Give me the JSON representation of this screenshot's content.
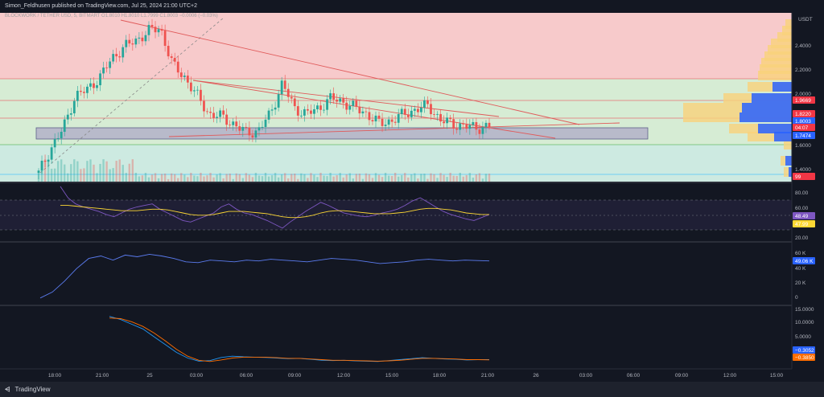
{
  "header": {
    "published": "Simon_Feldhusen published on TradingView.com, Jul 25, 2024 21:00 UTC+2",
    "symbol_line": "BLOCKWORK / TETHER USD, 5, BITMART  O1.8010  H1.8010  L1.7999  C1.8003  −0.0006 (−0.03%)"
  },
  "footer": {
    "brand": "TradingView",
    "brand_icon": "tradingview-logo-icon"
  },
  "colors": {
    "background": "#131722",
    "zone_red": "#f7cacb",
    "zone_green": "#d6ecd4",
    "zone_teal": "#cdeae1",
    "candle_up": "#26a69a",
    "candle_down": "#ef5350",
    "trendline": "#e05a5a",
    "support_box": "#b3b1c8",
    "rsi_line": "#7e57c2",
    "rsi_ma": "#fdd835",
    "obv_line": "#5b7cf0",
    "macd_line": "#2196f3",
    "signal_line": "#ff6d00"
  },
  "price_axis": {
    "currency": "USDT",
    "ticks": [
      "2.4000",
      "2.2000",
      "2.0000",
      "1.6000",
      "1.4000"
    ],
    "tags": [
      {
        "label": "1.9669",
        "color": "#f23645"
      },
      {
        "label": "1.8220",
        "color": "#f23645"
      },
      {
        "label": "1.8003",
        "color": "#2962ff"
      },
      {
        "label": "04:07",
        "color": "#f23645"
      },
      {
        "label": "1.7474",
        "color": "#2962ff"
      },
      {
        "label": "99",
        "color": "#f23645"
      }
    ]
  },
  "rsi_axis": {
    "ticks": [
      "80.00",
      "60.00",
      "40.00",
      "20.00"
    ],
    "tags": [
      {
        "label": "48.49",
        "color": "#7e57c2"
      },
      {
        "label": "47.99",
        "color": "#fdd835"
      }
    ]
  },
  "obv_axis": {
    "ticks": [
      "60 K",
      "40 K",
      "20 K",
      "0"
    ],
    "tags": [
      {
        "label": "49.06 K",
        "color": "#2962ff"
      }
    ]
  },
  "macd_axis": {
    "ticks": [
      "15.0000",
      "10.0000",
      "5.0000"
    ],
    "tags": [
      {
        "label": "−0.3052",
        "color": "#2962ff"
      },
      {
        "label": "−0.3850",
        "color": "#ff6d00"
      }
    ]
  },
  "time_axis": [
    "18:00",
    "21:00",
    "25",
    "03:00",
    "06:00",
    "09:00",
    "12:00",
    "15:00",
    "18:00",
    "21:00",
    "26",
    "03:00",
    "06:00",
    "09:00",
    "12:00",
    "15:00"
  ],
  "chart_data": [
    {
      "type": "candlestick",
      "title": "BLOCKWORK / TETHER USD, 5, BITMART",
      "ylim": [
        1.35,
        2.7
      ],
      "x": [
        "18:00",
        "18:30",
        "19:00",
        "19:30",
        "20:00",
        "20:30",
        "21:00",
        "21:30",
        "22:00",
        "22:30",
        "23:00",
        "23:30",
        "00:00",
        "00:30",
        "01:00",
        "01:30",
        "02:00",
        "02:30",
        "03:00",
        "03:30",
        "04:00",
        "05:00",
        "06:00",
        "07:00",
        "08:00",
        "09:00",
        "10:00",
        "11:00",
        "12:00",
        "13:00",
        "14:00",
        "15:00",
        "16:00",
        "17:00",
        "18:00",
        "19:00",
        "20:00",
        "21:00"
      ],
      "close": [
        1.42,
        1.62,
        1.78,
        2.05,
        2.1,
        2.2,
        2.35,
        2.45,
        2.5,
        2.58,
        2.6,
        2.3,
        2.2,
        2.05,
        1.9,
        1.88,
        1.82,
        1.75,
        1.76,
        1.9,
        2.15,
        1.95,
        1.9,
        1.95,
        2.03,
        2.0,
        1.95,
        1.9,
        1.82,
        1.85,
        1.9,
        1.94,
        1.97,
        1.85,
        1.82,
        1.8,
        1.79,
        1.8
      ],
      "volume_present": true,
      "levels": [
        {
          "name": "resistance",
          "value": 2.2
        },
        {
          "name": "mid",
          "value": 1.9669
        },
        {
          "name": "close",
          "value": 1.8003
        },
        {
          "name": "support",
          "value": 1.7474
        }
      ],
      "zones": [
        {
          "name": "red-zone",
          "from": 2.2,
          "to": 2.7
        },
        {
          "name": "green-zone",
          "from": 1.75,
          "to": 2.2
        },
        {
          "name": "teal-zone",
          "from": 1.36,
          "to": 1.6
        }
      ]
    },
    {
      "type": "line",
      "title": "RSI",
      "ylim": [
        15,
        85
      ],
      "series": [
        {
          "values": [
            85,
            70,
            62,
            58,
            55,
            52,
            48,
            45,
            50,
            55,
            58,
            60,
            62,
            55,
            50,
            45,
            40,
            38,
            42,
            46,
            50,
            58,
            62,
            55,
            50,
            48,
            44,
            40,
            35,
            30,
            38,
            45,
            52,
            58,
            64,
            60,
            55,
            50,
            48,
            46,
            45,
            47,
            50,
            52,
            55,
            60,
            66,
            70,
            64,
            58,
            52,
            48,
            45,
            42,
            40,
            44,
            48
          ]
        },
        {
          "values": [
            60,
            60,
            59,
            58,
            57,
            56,
            55,
            54,
            53,
            53,
            53,
            54,
            55,
            55,
            54,
            52,
            50,
            48,
            47,
            47,
            48,
            50,
            52,
            52,
            52,
            51,
            50,
            49,
            47,
            45,
            44,
            44,
            45,
            47,
            50,
            52,
            53,
            53,
            52,
            51,
            50,
            49,
            49,
            49,
            50,
            51,
            53,
            55,
            56,
            56,
            55,
            54,
            52,
            50,
            49,
            48,
            48
          ]
        }
      ]
    },
    {
      "type": "line",
      "title": "OBV",
      "ylim": [
        0,
        65000
      ],
      "series": [
        {
          "values": [
            5000,
            12000,
            25000,
            40000,
            52000,
            55000,
            50000,
            56000,
            54000,
            57000,
            55000,
            52000,
            48000,
            47000,
            50000,
            49000,
            48000,
            50000,
            49000,
            51000,
            50000,
            49000,
            48000,
            50000,
            52000,
            51000,
            50000,
            48000,
            46000,
            47000,
            48000,
            50000,
            51000,
            50000,
            49000,
            50000,
            49500,
            49060
          ]
        }
      ]
    },
    {
      "type": "line",
      "title": "MACD",
      "ylim": [
        -3,
        16
      ],
      "series": [
        {
          "values": [
            13.5,
            12.5,
            11,
            9.5,
            7,
            4.5,
            2,
            0.2,
            -0.8,
            -0.6,
            0.4,
            0.8,
            0.6,
            0.5,
            0.4,
            0.2,
            0,
            0.1,
            -0.2,
            -0.5,
            -0.6,
            -0.5,
            -0.7,
            -0.8,
            -0.9,
            -0.6,
            -0.3,
            0,
            0.3,
            0.1,
            -0.1,
            -0.2,
            -0.4,
            -0.3,
            -0.3
          ]
        },
        {
          "values": [
            13,
            12.8,
            11.8,
            10.3,
            8.2,
            5.7,
            3,
            0.8,
            -0.5,
            -0.9,
            -0.4,
            0.2,
            0.5,
            0.5,
            0.5,
            0.3,
            0.1,
            0.1,
            -0.1,
            -0.3,
            -0.5,
            -0.5,
            -0.6,
            -0.7,
            -0.8,
            -0.7,
            -0.5,
            -0.2,
            0.1,
            0.1,
            0,
            -0.1,
            -0.3,
            -0.3,
            -0.385
          ]
        }
      ]
    }
  ]
}
